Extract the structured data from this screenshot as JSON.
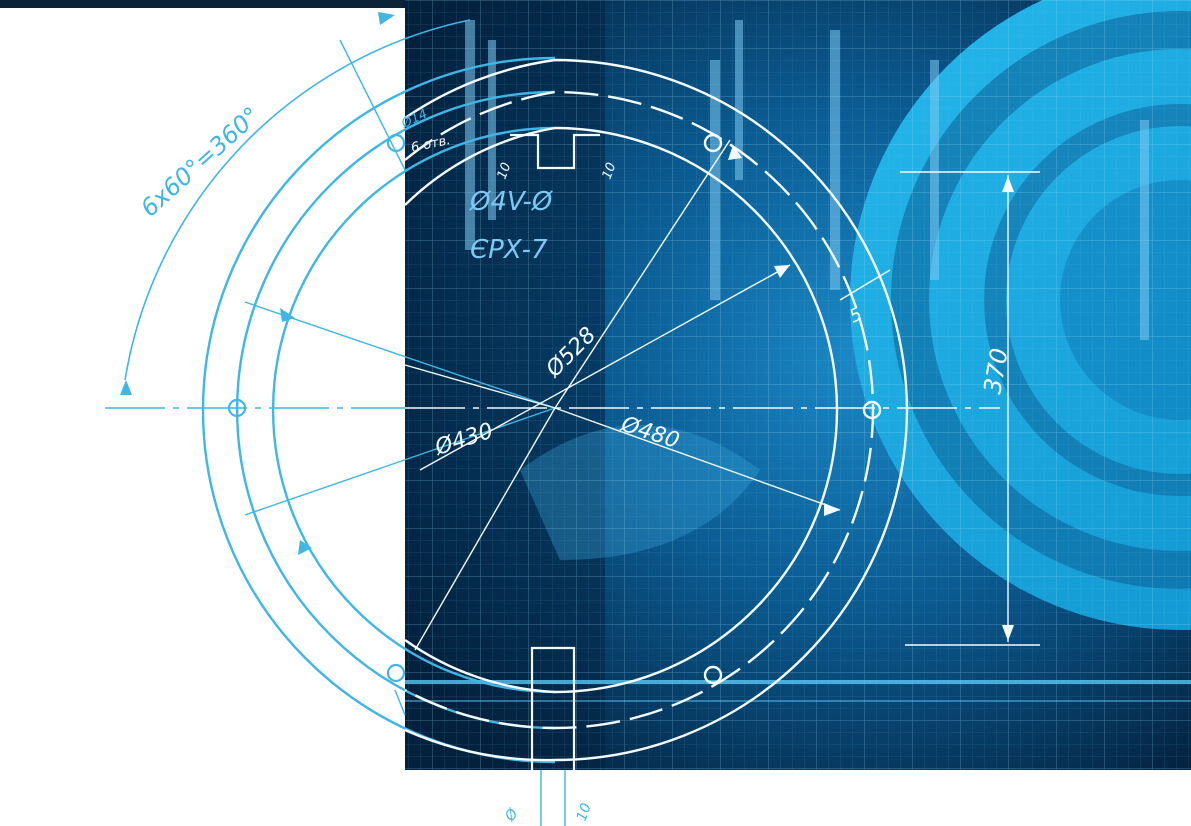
{
  "labels": {
    "angle_spacing": "6x60°=360°",
    "hole_count": "6 отв.",
    "hole_dia": "Ø14",
    "code_line_1": "ЄРХ-7",
    "code_line_2": "Ø4V-Ø",
    "dia_outer": "Ø528",
    "dia_inner": "Ø430",
    "dia_mid": "Ø480",
    "height": "370",
    "chamfer": "5",
    "notch_left": "10",
    "notch_right": "10",
    "bottom_left": "Ø",
    "bottom_right": "10"
  },
  "colors": {
    "blueprint_dark": "#062d52",
    "blueprint_mid": "#0a5f93",
    "cyan": "#19a7df",
    "line_cyan": "#3fb6e5",
    "line_white": "#f4fbff"
  }
}
